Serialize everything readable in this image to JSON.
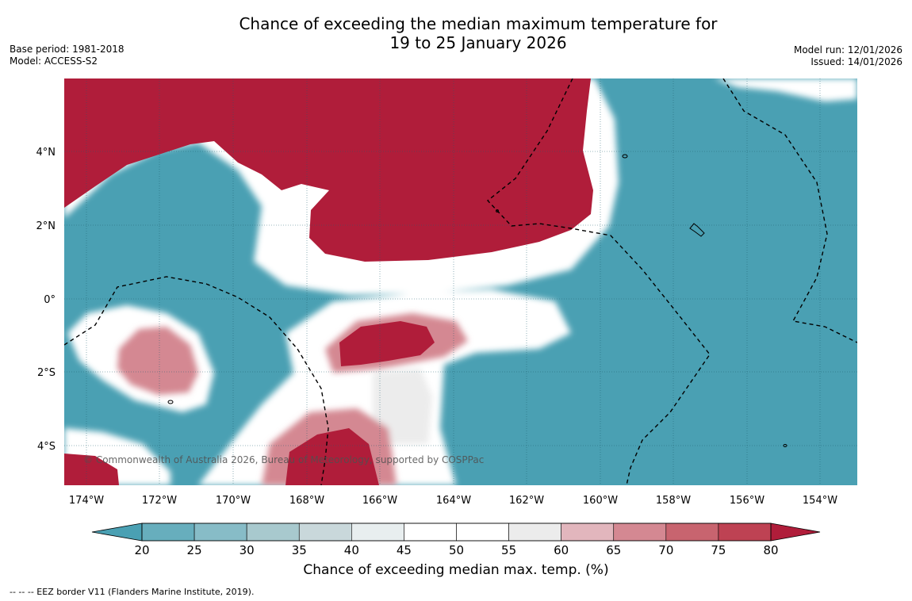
{
  "header": {
    "title_line1": "Chance of exceeding the median maximum temperature for",
    "title_line2": "19 to 25 January 2026",
    "base_period": "Base period: 1981-2018",
    "model": "Model: ACCESS-S2",
    "model_run": "Model run: 12/01/2026",
    "issued": "Issued: 14/01/2026"
  },
  "map": {
    "lat_labels": [
      "4°N",
      "2°N",
      "0°",
      "2°S",
      "4°S"
    ],
    "lon_labels": [
      "174°W",
      "172°W",
      "170°W",
      "168°W",
      "166°W",
      "164°W",
      "162°W",
      "160°W",
      "158°W",
      "156°W",
      "154°W"
    ],
    "copyright": "© Commonwealth of Australia 2026, Bureau of Meteorology, supported by COSPPac",
    "colors": {
      "below": "#4aa0b3",
      "strong_above": "#b01d3a",
      "neutral": "#ffffff"
    }
  },
  "colorbar": {
    "ticks": [
      "20",
      "25",
      "30",
      "35",
      "40",
      "45",
      "50",
      "55",
      "60",
      "65",
      "70",
      "75",
      "80"
    ],
    "colors": [
      "#4aa0b3",
      "#67aebd",
      "#87bcc7",
      "#a8c9ce",
      "#c9d8db",
      "#e8eeef",
      "#ffffff",
      "#ffffff",
      "#ececec",
      "#e2b6bd",
      "#d48892",
      "#c8646f",
      "#be4253",
      "#b01d3a"
    ],
    "label": "Chance of exceeding median max. temp. (%)"
  },
  "footer": {
    "legend": "--  --  -- EEZ border V11 (Flanders Marine Institute, 2019)."
  }
}
